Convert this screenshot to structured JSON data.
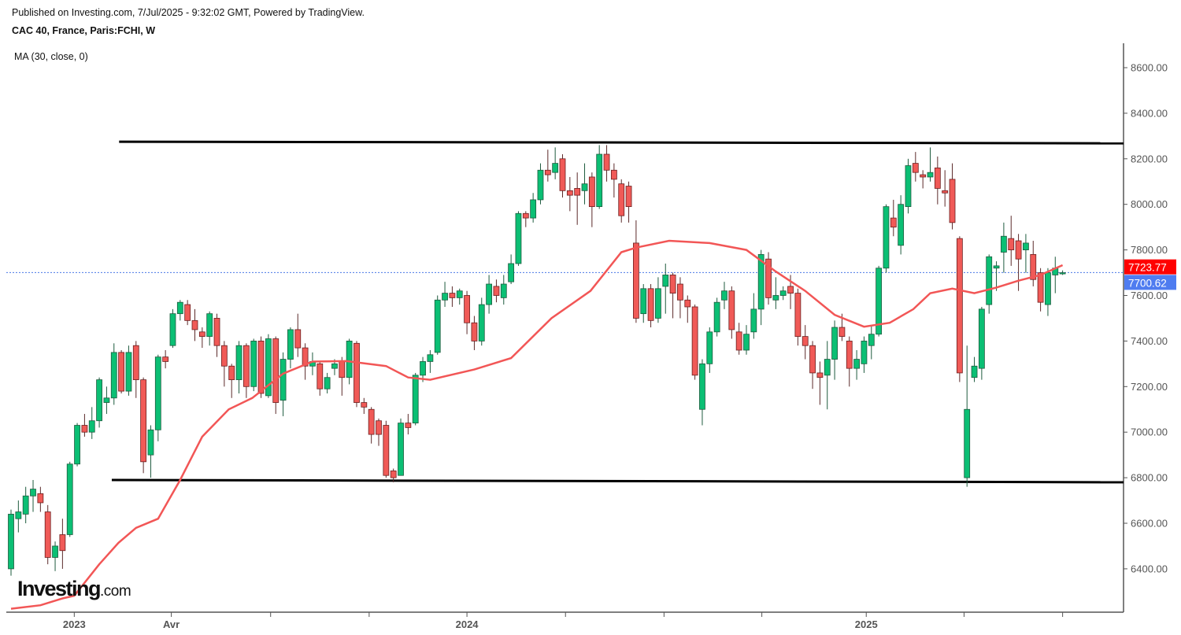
{
  "header": {
    "published": "Published on Investing.com, 7/Jul/2025 - 9:32:02 GMT, Powered by TradingView.",
    "symbol": "CAC 40, France, Paris:FCHI, W",
    "indicator": "MA (30, close, 0)"
  },
  "logo": {
    "main": "Investing",
    "suffix": ".com"
  },
  "colors": {
    "up": "#0bbf74",
    "down": "#f05a57",
    "ma": "#f25656",
    "price_line": "#4a78e8",
    "last_label": "#ff0000",
    "ma_label_bg": "#ff0000",
    "price_label_bg": "#4f7cf0"
  },
  "chart_data": {
    "type": "candlestick",
    "title": "CAC 40, France, Paris:FCHI, W",
    "ylim": [
      6250,
      8700
    ],
    "y_ticks": [
      "6400.00",
      "6600.00",
      "6800.00",
      "7000.00",
      "7200.00",
      "7400.00",
      "7600.00",
      "7800.00",
      "8000.00",
      "8200.00",
      "8400.00",
      "8600.00"
    ],
    "x_ticks": [
      {
        "week": 8.6,
        "label": "2023"
      },
      {
        "week": 21.8,
        "label": "Avr"
      },
      {
        "week": 35.3,
        "label": ""
      },
      {
        "week": 48.7,
        "label": ""
      },
      {
        "week": 62,
        "label": "2024"
      },
      {
        "week": 75.4,
        "label": ""
      },
      {
        "week": 88.8,
        "label": ""
      },
      {
        "week": 102.1,
        "label": ""
      },
      {
        "week": 116.3,
        "label": "2025"
      },
      {
        "week": 129.6,
        "label": ""
      },
      {
        "week": 143,
        "label": ""
      }
    ],
    "ohlc": [
      [
        6400,
        6640,
        6660,
        6370
      ],
      [
        6620,
        6650,
        6700,
        6560
      ],
      [
        6640,
        6720,
        6760,
        6600
      ],
      [
        6720,
        6750,
        6790,
        6650
      ],
      [
        6730,
        6690,
        6760,
        6650
      ],
      [
        6650,
        6450,
        6680,
        6420
      ],
      [
        6450,
        6500,
        6520,
        6390
      ],
      [
        6550,
        6480,
        6620,
        6400
      ],
      [
        6550,
        6860,
        6870,
        6540
      ],
      [
        6860,
        7030,
        7040,
        6850
      ],
      [
        7030,
        7000,
        7080,
        6980
      ],
      [
        7000,
        7050,
        7110,
        6970
      ],
      [
        7050,
        7230,
        7240,
        7020
      ],
      [
        7130,
        7150,
        7200,
        7080
      ],
      [
        7150,
        7350,
        7390,
        7120
      ],
      [
        7350,
        7180,
        7360,
        7170
      ],
      [
        7180,
        7350,
        7380,
        7160
      ],
      [
        7380,
        7230,
        7400,
        7150
      ],
      [
        7230,
        6870,
        7240,
        6820
      ],
      [
        6900,
        7010,
        7030,
        6800
      ],
      [
        7010,
        7330,
        7340,
        6960
      ],
      [
        7330,
        7310,
        7360,
        7280
      ],
      [
        7380,
        7520,
        7540,
        7370
      ],
      [
        7520,
        7570,
        7580,
        7490
      ],
      [
        7560,
        7490,
        7580,
        7470
      ],
      [
        7490,
        7450,
        7540,
        7400
      ],
      [
        7440,
        7420,
        7460,
        7370
      ],
      [
        7420,
        7520,
        7530,
        7380
      ],
      [
        7500,
        7380,
        7520,
        7330
      ],
      [
        7380,
        7290,
        7400,
        7200
      ],
      [
        7290,
        7230,
        7300,
        7150
      ],
      [
        7230,
        7380,
        7400,
        7170
      ],
      [
        7380,
        7200,
        7390,
        7150
      ],
      [
        7200,
        7400,
        7410,
        7180
      ],
      [
        7400,
        7170,
        7420,
        7150
      ],
      [
        7160,
        7410,
        7430,
        7150
      ],
      [
        7410,
        7130,
        7420,
        7080
      ],
      [
        7140,
        7320,
        7350,
        7070
      ],
      [
        7320,
        7450,
        7460,
        7280
      ],
      [
        7450,
        7370,
        7520,
        7330
      ],
      [
        7370,
        7290,
        7390,
        7230
      ],
      [
        7290,
        7310,
        7350,
        7250
      ],
      [
        7300,
        7190,
        7310,
        7160
      ],
      [
        7190,
        7240,
        7260,
        7170
      ],
      [
        7280,
        7300,
        7320,
        7250
      ],
      [
        7310,
        7240,
        7330,
        7160
      ],
      [
        7240,
        7400,
        7410,
        7210
      ],
      [
        7390,
        7130,
        7400,
        7110
      ],
      [
        7130,
        7110,
        7150,
        7080
      ],
      [
        7100,
        6990,
        7110,
        6950
      ],
      [
        7050,
        6990,
        7060,
        6940
      ],
      [
        7030,
        6810,
        7050,
        6800
      ],
      [
        6830,
        6800,
        6840,
        6780
      ],
      [
        6810,
        7040,
        7060,
        6810
      ],
      [
        7040,
        7020,
        7080,
        6990
      ],
      [
        7040,
        7250,
        7260,
        7030
      ],
      [
        7250,
        7310,
        7330,
        7220
      ],
      [
        7310,
        7340,
        7360,
        7260
      ],
      [
        7350,
        7580,
        7600,
        7340
      ],
      [
        7580,
        7610,
        7660,
        7550
      ],
      [
        7610,
        7590,
        7640,
        7550
      ],
      [
        7590,
        7620,
        7630,
        7560
      ],
      [
        7600,
        7480,
        7620,
        7430
      ],
      [
        7480,
        7400,
        7510,
        7360
      ],
      [
        7400,
        7560,
        7590,
        7380
      ],
      [
        7560,
        7650,
        7690,
        7520
      ],
      [
        7640,
        7600,
        7670,
        7570
      ],
      [
        7590,
        7650,
        7690,
        7560
      ],
      [
        7660,
        7740,
        7780,
        7650
      ],
      [
        7740,
        7960,
        7970,
        7730
      ],
      [
        7960,
        7940,
        7970,
        7900
      ],
      [
        7940,
        8020,
        8050,
        7920
      ],
      [
        8020,
        8150,
        8180,
        8000
      ],
      [
        8150,
        8130,
        8240,
        8100
      ],
      [
        8140,
        8180,
        8250,
        8110
      ],
      [
        8200,
        8060,
        8220,
        8030
      ],
      [
        8060,
        8040,
        8120,
        7970
      ],
      [
        8070,
        8040,
        8140,
        7910
      ],
      [
        8060,
        8090,
        8180,
        8000
      ],
      [
        8120,
        7990,
        8140,
        7900
      ],
      [
        7990,
        8220,
        8260,
        7980
      ],
      [
        8220,
        8150,
        8260,
        8100
      ],
      [
        8150,
        8110,
        8180,
        8030
      ],
      [
        8090,
        7950,
        8110,
        7920
      ],
      [
        8080,
        7990,
        8100,
        7920
      ],
      [
        7830,
        7500,
        7930,
        7480
      ],
      [
        7520,
        7630,
        7650,
        7480
      ],
      [
        7630,
        7490,
        7650,
        7460
      ],
      [
        7500,
        7630,
        7680,
        7480
      ],
      [
        7640,
        7690,
        7740,
        7520
      ],
      [
        7690,
        7610,
        7700,
        7500
      ],
      [
        7650,
        7580,
        7680,
        7500
      ],
      [
        7580,
        7550,
        7600,
        7480
      ],
      [
        7550,
        7250,
        7560,
        7230
      ],
      [
        7100,
        7300,
        7320,
        7030
      ],
      [
        7300,
        7440,
        7460,
        7260
      ],
      [
        7440,
        7570,
        7590,
        7420
      ],
      [
        7580,
        7620,
        7660,
        7540
      ],
      [
        7620,
        7450,
        7640,
        7410
      ],
      [
        7440,
        7360,
        7480,
        7340
      ],
      [
        7360,
        7430,
        7470,
        7340
      ],
      [
        7440,
        7540,
        7610,
        7410
      ],
      [
        7540,
        7780,
        7800,
        7470
      ],
      [
        7760,
        7590,
        7790,
        7560
      ],
      [
        7580,
        7600,
        7680,
        7540
      ],
      [
        7600,
        7620,
        7640,
        7580
      ],
      [
        7640,
        7610,
        7690,
        7540
      ],
      [
        7610,
        7420,
        7630,
        7380
      ],
      [
        7420,
        7380,
        7470,
        7320
      ],
      [
        7380,
        7260,
        7400,
        7190
      ],
      [
        7260,
        7240,
        7310,
        7120
      ],
      [
        7250,
        7320,
        7400,
        7100
      ],
      [
        7320,
        7460,
        7490,
        7230
      ],
      [
        7460,
        7420,
        7520,
        7400
      ],
      [
        7400,
        7280,
        7420,
        7200
      ],
      [
        7280,
        7320,
        7360,
        7230
      ],
      [
        7300,
        7400,
        7420,
        7260
      ],
      [
        7380,
        7430,
        7470,
        7320
      ],
      [
        7430,
        7720,
        7730,
        7420
      ],
      [
        7720,
        7990,
        8000,
        7700
      ],
      [
        7940,
        7900,
        8020,
        7860
      ],
      [
        7820,
        8000,
        8040,
        7780
      ],
      [
        7990,
        8170,
        8200,
        7960
      ],
      [
        8180,
        8140,
        8230,
        8100
      ],
      [
        8130,
        8120,
        8150,
        8070
      ],
      [
        8120,
        8140,
        8250,
        8100
      ],
      [
        8160,
        8070,
        8210,
        8000
      ],
      [
        8060,
        8050,
        8150,
        7990
      ],
      [
        8110,
        7920,
        8180,
        7890
      ],
      [
        7850,
        7260,
        7860,
        7220
      ],
      [
        6800,
        7100,
        7380,
        6760
      ],
      [
        7240,
        7290,
        7330,
        7220
      ],
      [
        7280,
        7540,
        7550,
        7230
      ],
      [
        7560,
        7770,
        7780,
        7520
      ],
      [
        7720,
        7730,
        7750,
        7620
      ],
      [
        7790,
        7860,
        7920,
        7700
      ],
      [
        7850,
        7800,
        7950,
        7730
      ],
      [
        7840,
        7760,
        7870,
        7620
      ],
      [
        7800,
        7830,
        7870,
        7700
      ],
      [
        7780,
        7670,
        7840,
        7640
      ],
      [
        7700,
        7570,
        7720,
        7530
      ],
      [
        7560,
        7700,
        7720,
        7510
      ],
      [
        7690,
        7720,
        7770,
        7610
      ],
      [
        7700,
        7700,
        7710,
        7690
      ]
    ],
    "ma_series": {
      "name": "MA (30, close, 0)",
      "points": [
        [
          0,
          6225
        ],
        [
          4,
          6240
        ],
        [
          7,
          6270
        ],
        [
          8.6,
          6282
        ],
        [
          12,
          6420
        ],
        [
          14.6,
          6514
        ],
        [
          17,
          6580
        ],
        [
          20,
          6620
        ],
        [
          23,
          6790
        ],
        [
          26,
          6980
        ],
        [
          29.6,
          7100
        ],
        [
          32.8,
          7150
        ],
        [
          37,
          7257
        ],
        [
          41,
          7310
        ],
        [
          45.6,
          7312
        ],
        [
          51,
          7290
        ],
        [
          54,
          7240
        ],
        [
          57,
          7230
        ],
        [
          63,
          7275
        ],
        [
          68,
          7325
        ],
        [
          73.5,
          7500
        ],
        [
          78.8,
          7620
        ],
        [
          83,
          7790
        ],
        [
          85,
          7810
        ],
        [
          89.5,
          7840
        ],
        [
          95,
          7830
        ],
        [
          100,
          7800
        ],
        [
          104,
          7705
        ],
        [
          108,
          7620
        ],
        [
          112,
          7515
        ],
        [
          116,
          7463
        ],
        [
          119.5,
          7480
        ],
        [
          122.7,
          7540
        ],
        [
          125,
          7610
        ],
        [
          128,
          7630
        ],
        [
          131,
          7610
        ],
        [
          134,
          7635
        ],
        [
          137,
          7665
        ],
        [
          140,
          7690
        ],
        [
          143,
          7733
        ]
      ]
    },
    "support_resistance": [
      {
        "name": "resistance",
        "from_week": 14.7,
        "values": [
          8275,
          8268
        ]
      },
      {
        "name": "support",
        "from_week": 13.7,
        "values": [
          6790,
          6780
        ]
      }
    ],
    "last_price": 7700.62,
    "last_price_label": "7700.62",
    "ma_last": 7723.77,
    "ma_last_label": "7723.77"
  }
}
